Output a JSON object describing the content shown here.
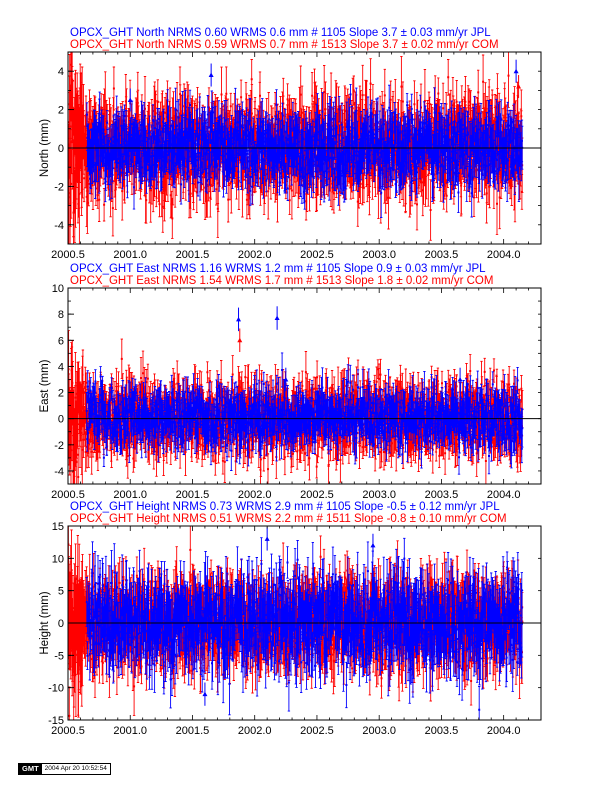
{
  "stamp": {
    "logo": "GMT",
    "date": "2004 Apr 20 10:52:54"
  },
  "colors": {
    "jpl": "#0000ff",
    "com": "#ff0000",
    "zero": "#000000"
  },
  "chart_data": [
    {
      "type": "scatter",
      "ylabel": "North (mm)",
      "xlim": [
        2000.5,
        2004.3
      ],
      "ylim": [
        -5,
        5
      ],
      "xticks": [
        "2000.5",
        "2001.0",
        "2001.5",
        "2002.0",
        "2002.5",
        "2003.0",
        "2003.5",
        "2004.0"
      ],
      "yticks": [
        "-4",
        "-2",
        "0",
        "2",
        "4"
      ],
      "title_lines": [
        {
          "text": "OPCX_GHT North NRMS 0.60 WRMS  0.6 mm # 1105 Slope    3.7 ±  0.03 mm/yr JPL",
          "color": "#0000ff"
        },
        {
          "text": "OPCX_GHT North NRMS 0.59 WRMS  0.7 mm # 1513 Slope    3.7 ±  0.02 mm/yr COM",
          "color": "#ff0000"
        }
      ],
      "series": [
        {
          "name": "COM",
          "x_range": [
            2000.5,
            2004.15
          ],
          "count": 1513,
          "spread": 1.2,
          "err": 1.3
        },
        {
          "name": "JPL",
          "x_range": [
            2000.65,
            2004.15
          ],
          "count": 1105,
          "spread": 0.9,
          "err": 1.0
        }
      ],
      "outliers": [
        {
          "x": 2001.65,
          "y": 3.8,
          "series": "JPL"
        },
        {
          "x": 2004.1,
          "y": 4.0,
          "series": "JPL"
        },
        {
          "x": 2004.12,
          "y": 3.2,
          "series": "COM"
        },
        {
          "x": 2001.0,
          "y": 2.5,
          "series": "JPL"
        }
      ]
    },
    {
      "type": "scatter",
      "ylabel": "East (mm)",
      "xlim": [
        2000.5,
        2004.3
      ],
      "ylim": [
        -5,
        10
      ],
      "xticks": [
        "2000.5",
        "2001.0",
        "2001.5",
        "2002.0",
        "2002.5",
        "2003.0",
        "2003.5",
        "2004.0"
      ],
      "yticks": [
        "-4",
        "-2",
        "0",
        "2",
        "4",
        "6",
        "8",
        "10"
      ],
      "title_lines": [
        {
          "text": "OPCX_GHT East NRMS 1.16 WRMS  1.2 mm # 1105 Slope    0.9 ±  0.03 mm/yr JPL",
          "color": "#0000ff"
        },
        {
          "text": "OPCX_GHT East NRMS 1.54 WRMS  1.7 mm # 1513 Slope    1.8 ±  0.02 mm/yr COM",
          "color": "#ff0000"
        }
      ],
      "series": [
        {
          "name": "COM",
          "x_range": [
            2000.5,
            2004.15
          ],
          "count": 1513,
          "spread": 1.3,
          "err": 1.4
        },
        {
          "name": "JPL",
          "x_range": [
            2000.65,
            2004.15
          ],
          "count": 1105,
          "spread": 1.1,
          "err": 1.2
        }
      ],
      "outliers": [
        {
          "x": 2001.87,
          "y": 7.6,
          "series": "JPL"
        },
        {
          "x": 2002.18,
          "y": 7.7,
          "series": "JPL"
        },
        {
          "x": 2001.88,
          "y": 6.0,
          "series": "COM"
        },
        {
          "x": 2002.25,
          "y": 3.0,
          "series": "JPL"
        },
        {
          "x": 2003.65,
          "y": 3.0,
          "series": "JPL"
        }
      ]
    },
    {
      "type": "scatter",
      "ylabel": "Height (mm)",
      "xlim": [
        2000.5,
        2004.3
      ],
      "ylim": [
        -15,
        15
      ],
      "xticks": [
        "2000.5",
        "2001.0",
        "2001.5",
        "2002.0",
        "2002.5",
        "2003.0",
        "2003.5",
        "2004.0"
      ],
      "yticks": [
        "-15",
        "-10",
        "-5",
        "0",
        "5",
        "10",
        "15"
      ],
      "title_lines": [
        {
          "text": "OPCX_GHT Height NRMS 0.73 WRMS  2.9 mm # 1105 Slope   -0.5 ±  0.12 mm/yr JPL",
          "color": "#0000ff"
        },
        {
          "text": "OPCX_GHT Height NRMS 0.51 WRMS  2.2 mm # 1511 Slope   -0.8 ±  0.10 mm/yr COM",
          "color": "#ff0000"
        }
      ],
      "series": [
        {
          "name": "COM",
          "x_range": [
            2000.5,
            2004.15
          ],
          "count": 1511,
          "spread": 3.0,
          "err": 4.0
        },
        {
          "name": "JPL",
          "x_range": [
            2000.65,
            2004.15
          ],
          "count": 1105,
          "spread": 3.2,
          "err": 4.0
        }
      ],
      "outliers": [
        {
          "x": 2002.95,
          "y": 12.0,
          "series": "JPL"
        },
        {
          "x": 2001.6,
          "y": -11.0,
          "series": "JPL"
        },
        {
          "x": 2002.1,
          "y": 13.0,
          "series": "JPL"
        }
      ]
    }
  ]
}
